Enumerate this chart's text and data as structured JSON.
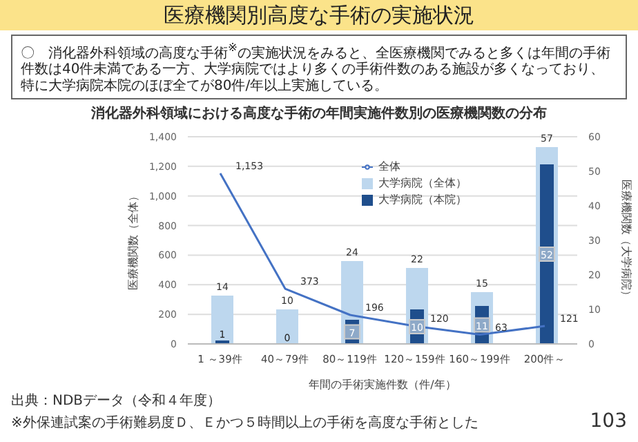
{
  "chart_data": {
    "type": "bar",
    "title": "医療機関別高度な手術の実施状況",
    "subtitle": "消化器外科領域における高度な手術の年間実施件数別の医療機関数の分布",
    "annotations": [
      "〇　消化器外科領域の高度な手術$^{※}$の実施状況をみると、全医療機関でみると多くは年間の手術件数は40件未満である一方、大学病院ではより多くの手術件数のある施設が多くなっており、特に大学病院本院のほぼ全てが80件/年以上実施している。",
      "出典：NDBデータ（令和４年度）",
      "※外保連試案の手術難易度Ｄ、Ｅかつ５時間以上の手術を高度な手術とした",
      "103"
    ],
    "xlabel": "年間の手術実施件数（件/年）",
    "ylabel": "医療機関数（全体）",
    "y2label": "医療機関数（大学病院）",
    "categories": [
      "1 ～39件",
      "40～79件",
      "80～119件",
      "120～159件",
      "160～199件",
      "200件～"
    ],
    "series": [
      {
        "name": "大学病院（全体）",
        "axis": "y2",
        "color": "#bdd7ee",
        "values": [
          14,
          10,
          24,
          22,
          15,
          57
        ],
        "value_labels": [
          "14",
          "10",
          "24",
          "22",
          "15",
          "57"
        ]
      },
      {
        "name": "大学病院（本院）",
        "axis": "y2",
        "color": "#1f4e8c",
        "values": [
          1,
          0,
          7,
          10,
          11,
          52
        ],
        "value_labels": [
          "1",
          "0",
          "7",
          "10",
          "11",
          "52"
        ]
      },
      {
        "name": "全体",
        "type": "line",
        "axis": "y",
        "color": "#4472c4",
        "values": [
          1153,
          373,
          196,
          120,
          63,
          121
        ],
        "value_labels": [
          "1,153",
          "373",
          "196",
          "120",
          "63",
          "121"
        ]
      }
    ],
    "ylim": [
      0,
      1400
    ],
    "yticks": [
      {
        "value": 0,
        "label": "0"
      },
      {
        "value": 200,
        "label": "200"
      },
      {
        "value": 400,
        "label": "400"
      },
      {
        "value": 600,
        "label": "600"
      },
      {
        "value": 800,
        "label": "800"
      },
      {
        "value": 1000,
        "label": "1,000"
      },
      {
        "value": 1200,
        "label": "1,200"
      },
      {
        "value": 1400,
        "label": "1,400"
      }
    ],
    "y2lim": [
      0,
      60
    ],
    "y2ticks": [
      0,
      10,
      20,
      30,
      40,
      50,
      60
    ],
    "grid": "y",
    "legend": "top right",
    "marker": "none"
  }
}
